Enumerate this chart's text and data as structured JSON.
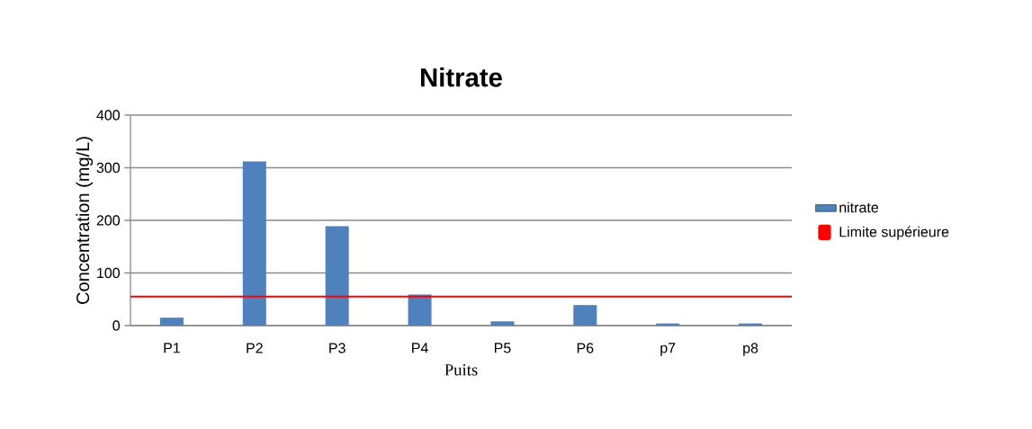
{
  "chart_data": {
    "type": "bar",
    "title": "Nitrate",
    "xlabel": "Puits",
    "ylabel": "Concentration (mg/L)",
    "categories": [
      "P1",
      "P2",
      "P3",
      "P4",
      "P5",
      "P6",
      "p7",
      "p8"
    ],
    "series": [
      {
        "name": "nitrate",
        "color": "#4f81bd",
        "values": [
          15,
          312,
          189,
          59,
          8,
          39,
          4,
          4
        ]
      }
    ],
    "ref_lines": [
      {
        "axis": "y",
        "value": 55,
        "label": "Limite supérieure",
        "color": "#ff0000"
      }
    ],
    "ylim": [
      0,
      400
    ],
    "yticks": [
      0,
      100,
      200,
      300,
      400
    ],
    "grid": "y",
    "legend": "right"
  }
}
